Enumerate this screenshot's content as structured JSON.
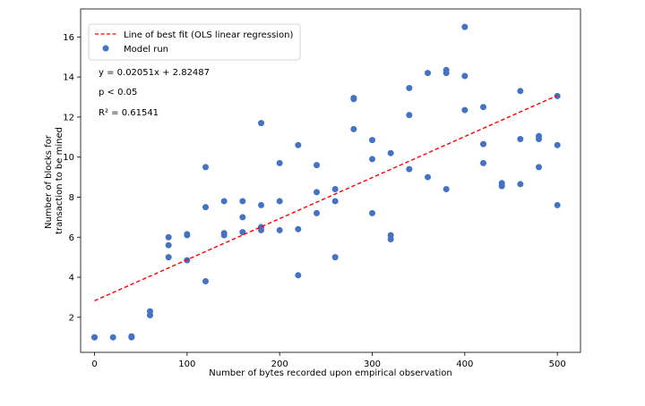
{
  "chart_data": {
    "type": "scatter",
    "xlabel": "Number of bytes recorded upon empirical observation",
    "ylabel_lines": [
      "Number of blocks for",
      "transaction to be mined"
    ],
    "xlim": [
      -15,
      525
    ],
    "ylim": [
      0.25,
      17.4
    ],
    "xticks": [
      0,
      100,
      200,
      300,
      400,
      500
    ],
    "yticks": [
      2,
      4,
      6,
      8,
      10,
      12,
      14,
      16
    ],
    "grid": false,
    "legend_position": "top-left",
    "annotations": [
      "y = 0.02051x + 2.82487",
      "p < 0.05",
      "R² = 0.61541"
    ],
    "fit": {
      "name": "Line of best fit (OLS linear regression)",
      "slope": 0.02051,
      "intercept": 2.82487,
      "x_range": [
        0,
        500
      ],
      "color": "#ff0000",
      "style": "dashed"
    },
    "series": [
      {
        "name": "Model run",
        "color": "#4472c4",
        "points": [
          [
            0,
            1.0
          ],
          [
            0,
            1.0
          ],
          [
            20,
            1.0
          ],
          [
            40,
            1.05
          ],
          [
            40,
            1.0
          ],
          [
            60,
            2.3
          ],
          [
            60,
            2.1
          ],
          [
            80,
            6.0
          ],
          [
            80,
            5.6
          ],
          [
            80,
            5.0
          ],
          [
            100,
            6.1
          ],
          [
            100,
            6.15
          ],
          [
            100,
            4.85
          ],
          [
            120,
            9.5
          ],
          [
            120,
            7.5
          ],
          [
            120,
            3.8
          ],
          [
            140,
            7.8
          ],
          [
            140,
            6.2
          ],
          [
            140,
            6.1
          ],
          [
            160,
            7.8
          ],
          [
            160,
            7.0
          ],
          [
            160,
            6.25
          ],
          [
            180,
            11.7
          ],
          [
            180,
            7.6
          ],
          [
            180,
            6.5
          ],
          [
            180,
            6.35
          ],
          [
            200,
            9.7
          ],
          [
            200,
            7.8
          ],
          [
            200,
            6.35
          ],
          [
            220,
            10.6
          ],
          [
            220,
            6.4
          ],
          [
            220,
            4.1
          ],
          [
            240,
            9.6
          ],
          [
            240,
            8.25
          ],
          [
            240,
            7.2
          ],
          [
            260,
            8.4
          ],
          [
            260,
            7.8
          ],
          [
            260,
            5.0
          ],
          [
            280,
            12.95
          ],
          [
            280,
            12.9
          ],
          [
            280,
            11.4
          ],
          [
            300,
            10.85
          ],
          [
            300,
            9.9
          ],
          [
            300,
            7.2
          ],
          [
            320,
            10.2
          ],
          [
            320,
            6.1
          ],
          [
            320,
            5.9
          ],
          [
            340,
            13.45
          ],
          [
            340,
            12.1
          ],
          [
            340,
            9.4
          ],
          [
            360,
            14.2
          ],
          [
            360,
            9.0
          ],
          [
            380,
            14.35
          ],
          [
            380,
            14.2
          ],
          [
            380,
            8.4
          ],
          [
            400,
            16.5
          ],
          [
            400,
            14.05
          ],
          [
            400,
            12.35
          ],
          [
            420,
            12.5
          ],
          [
            420,
            10.65
          ],
          [
            420,
            9.7
          ],
          [
            440,
            8.7
          ],
          [
            440,
            8.55
          ],
          [
            460,
            13.3
          ],
          [
            460,
            10.9
          ],
          [
            460,
            8.65
          ],
          [
            480,
            11.05
          ],
          [
            480,
            10.9
          ],
          [
            480,
            9.5
          ],
          [
            500,
            13.05
          ],
          [
            500,
            10.6
          ],
          [
            500,
            7.6
          ]
        ]
      }
    ]
  }
}
